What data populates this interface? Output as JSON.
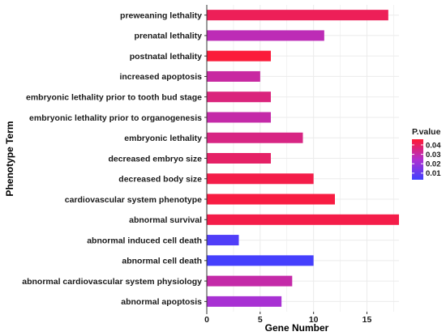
{
  "chart_data": {
    "type": "bar",
    "orientation": "horizontal",
    "xlabel": "Gene Number",
    "ylabel": "Phenotype Term",
    "xlim": [
      0,
      18
    ],
    "x_ticks": [
      "0",
      "5",
      "10",
      "15"
    ],
    "grid": true,
    "categories": [
      "preweaning lethality",
      "prenatal lethality",
      "postnatal lethality",
      "increased apoptosis",
      "embryonic lethality prior to tooth bud stage",
      "embryonic lethality prior to organogenesis",
      "embryonic lethality",
      "decreased embryo size",
      "decreased body size",
      "cardiovascular system phenotype",
      "abnormal survival",
      "abnormal induced cell death",
      "abnormal cell death",
      "abnormal cardiovascular system physiology",
      "abnormal apoptosis"
    ],
    "values": [
      17,
      11,
      6,
      5,
      6,
      6,
      9,
      6,
      10,
      12,
      18,
      3,
      10,
      8,
      7
    ],
    "pvalues": [
      0.041,
      0.028,
      0.045,
      0.031,
      0.036,
      0.03,
      0.035,
      0.039,
      0.043,
      0.044,
      0.043,
      0.006,
      0.004,
      0.03,
      0.023
    ],
    "legend": {
      "title": "P.value",
      "position": "right",
      "ticks": [
        "0.04",
        "0.03",
        "0.02",
        "0.01"
      ],
      "range": [
        0.003,
        0.046
      ],
      "color_low": "#4040ff",
      "color_high": "#ff1a33"
    }
  }
}
